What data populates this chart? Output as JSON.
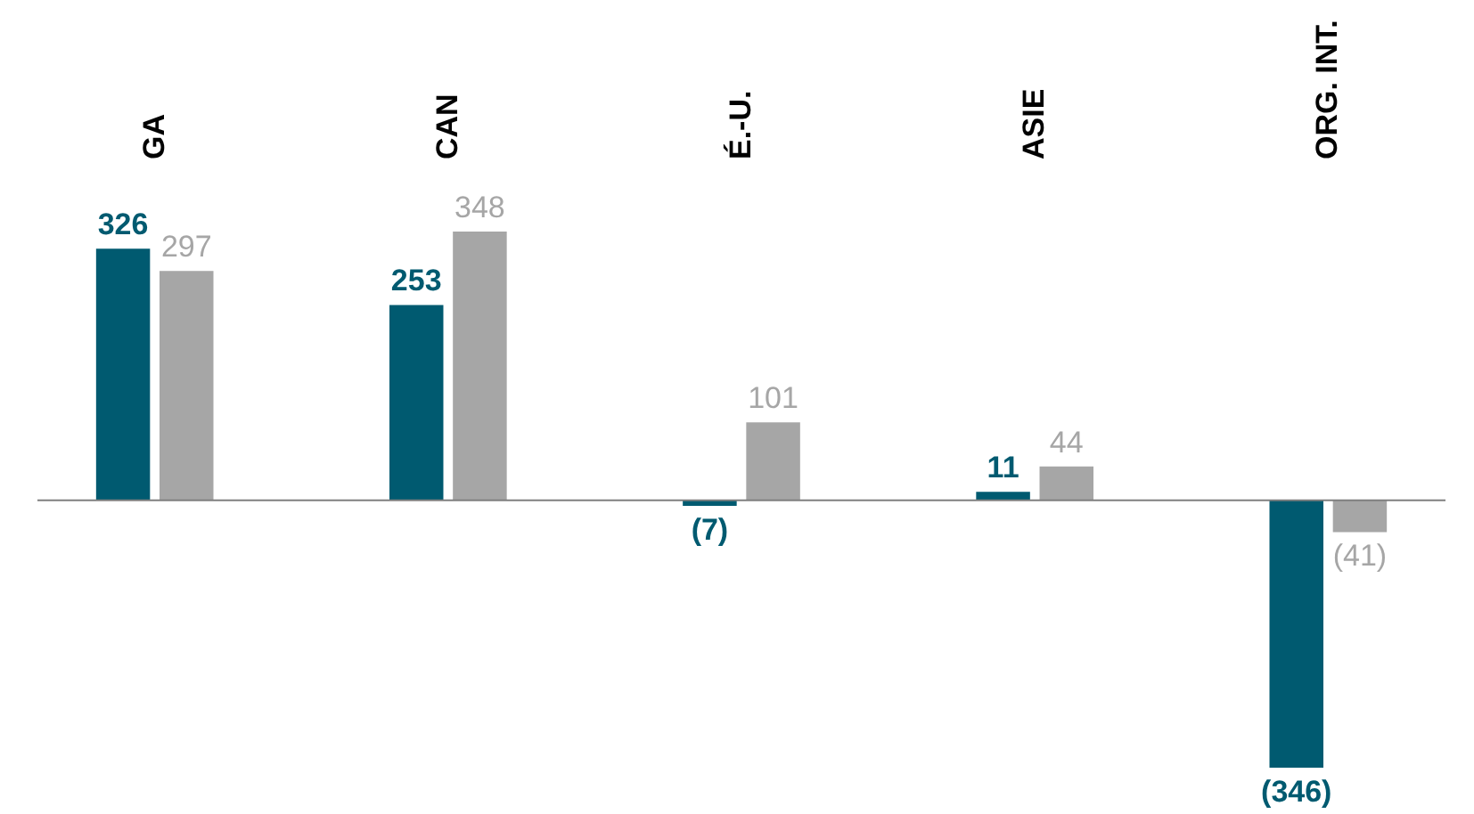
{
  "chart_data": {
    "type": "bar",
    "categories": [
      "GA",
      "CAN",
      "É.-U.",
      "ASIE",
      "ORG. INT."
    ],
    "series": [
      {
        "color": "#005a70",
        "values": [
          326,
          253,
          -7,
          11,
          -346
        ],
        "value_labels": [
          "326",
          "253",
          "(7)",
          "11",
          "(346)"
        ]
      },
      {
        "color": "#a6a6a6",
        "values": [
          297,
          348,
          101,
          44,
          -41
        ],
        "value_labels": [
          "297",
          "348",
          "101",
          "44",
          "(41)"
        ]
      }
    ]
  }
}
